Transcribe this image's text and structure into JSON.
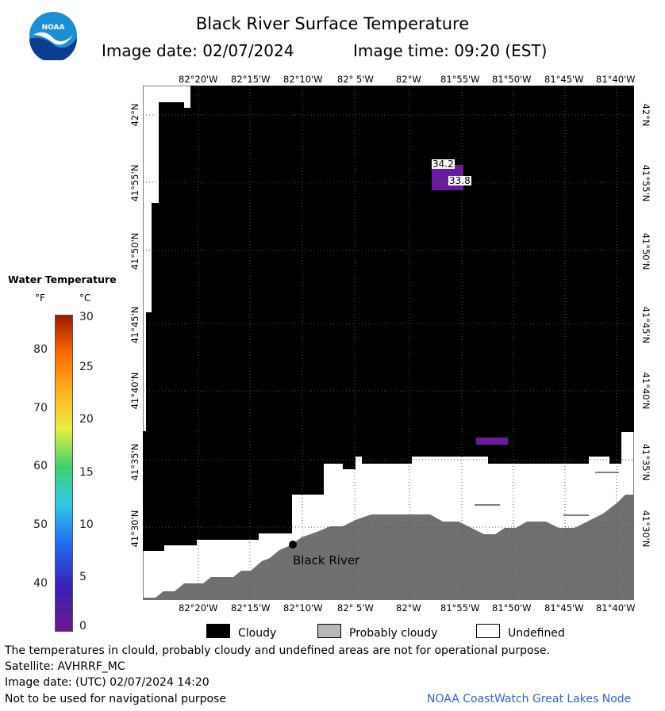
{
  "title": "Black River Surface Temperature",
  "image_date_label": "Image date: 02/07/2024",
  "image_time_label": "Image time: 09:20 (EST)",
  "logo": {
    "text": "NOAA",
    "icon": "noaa-logo-icon",
    "colors": {
      "sky": "#1c8ed6",
      "water": "#0a3d8f",
      "bird": "#ffffff"
    }
  },
  "longitude_ticks": [
    "82°20'W",
    "82°15'W",
    "82°10'W",
    "82° 5'W",
    "82°W",
    "81°55'W",
    "81°50'W",
    "81°45'W",
    "81°40'W"
  ],
  "latitude_ticks": [
    "42°N",
    "41°55'N",
    "41°50'N",
    "41°45'N",
    "41°40'N",
    "41°35'N",
    "41°30'N"
  ],
  "map": {
    "colors": {
      "cloudy": "#000000",
      "probably_cloudy": "#707070",
      "undefined": "#ffffff",
      "cold_water": "#6a1aa0"
    },
    "temperature_labels": [
      {
        "value": "34.2"
      },
      {
        "value": "33.8"
      }
    ],
    "location": {
      "name": "Black River"
    }
  },
  "legend": {
    "title": "Water Temperature",
    "unit_f": "°F",
    "unit_c": "°C",
    "fahrenheit_ticks": [
      "80",
      "70",
      "60",
      "50",
      "40"
    ],
    "celsius_ticks": [
      "30",
      "25",
      "20",
      "15",
      "10",
      "5",
      "0"
    ],
    "range_c": [
      0,
      30
    ],
    "gradient_colors": [
      "#6b1a8e",
      "#3a1fb8",
      "#1f6ff0",
      "#30c8e8",
      "#3fd070",
      "#e8ee40",
      "#ffb020",
      "#ff6a00",
      "#9b1a00"
    ]
  },
  "key": [
    {
      "label": "Cloudy",
      "color": "#000000"
    },
    {
      "label": "Probably cloudy",
      "color": "#b8b8b8"
    },
    {
      "label": "Undefined",
      "color": "#ffffff"
    }
  ],
  "notes": {
    "disclaimer": "The temperatures in clould, probably cloudy and undefined areas are not for operational purpose.",
    "satellite": "Satellite: AVHRRF_MC",
    "utc_date": "Image date: (UTC) 02/07/2024  14:20",
    "navigation": "Not to be used for navigational purpose",
    "credit": "NOAA CoastWatch Great Lakes Node"
  }
}
